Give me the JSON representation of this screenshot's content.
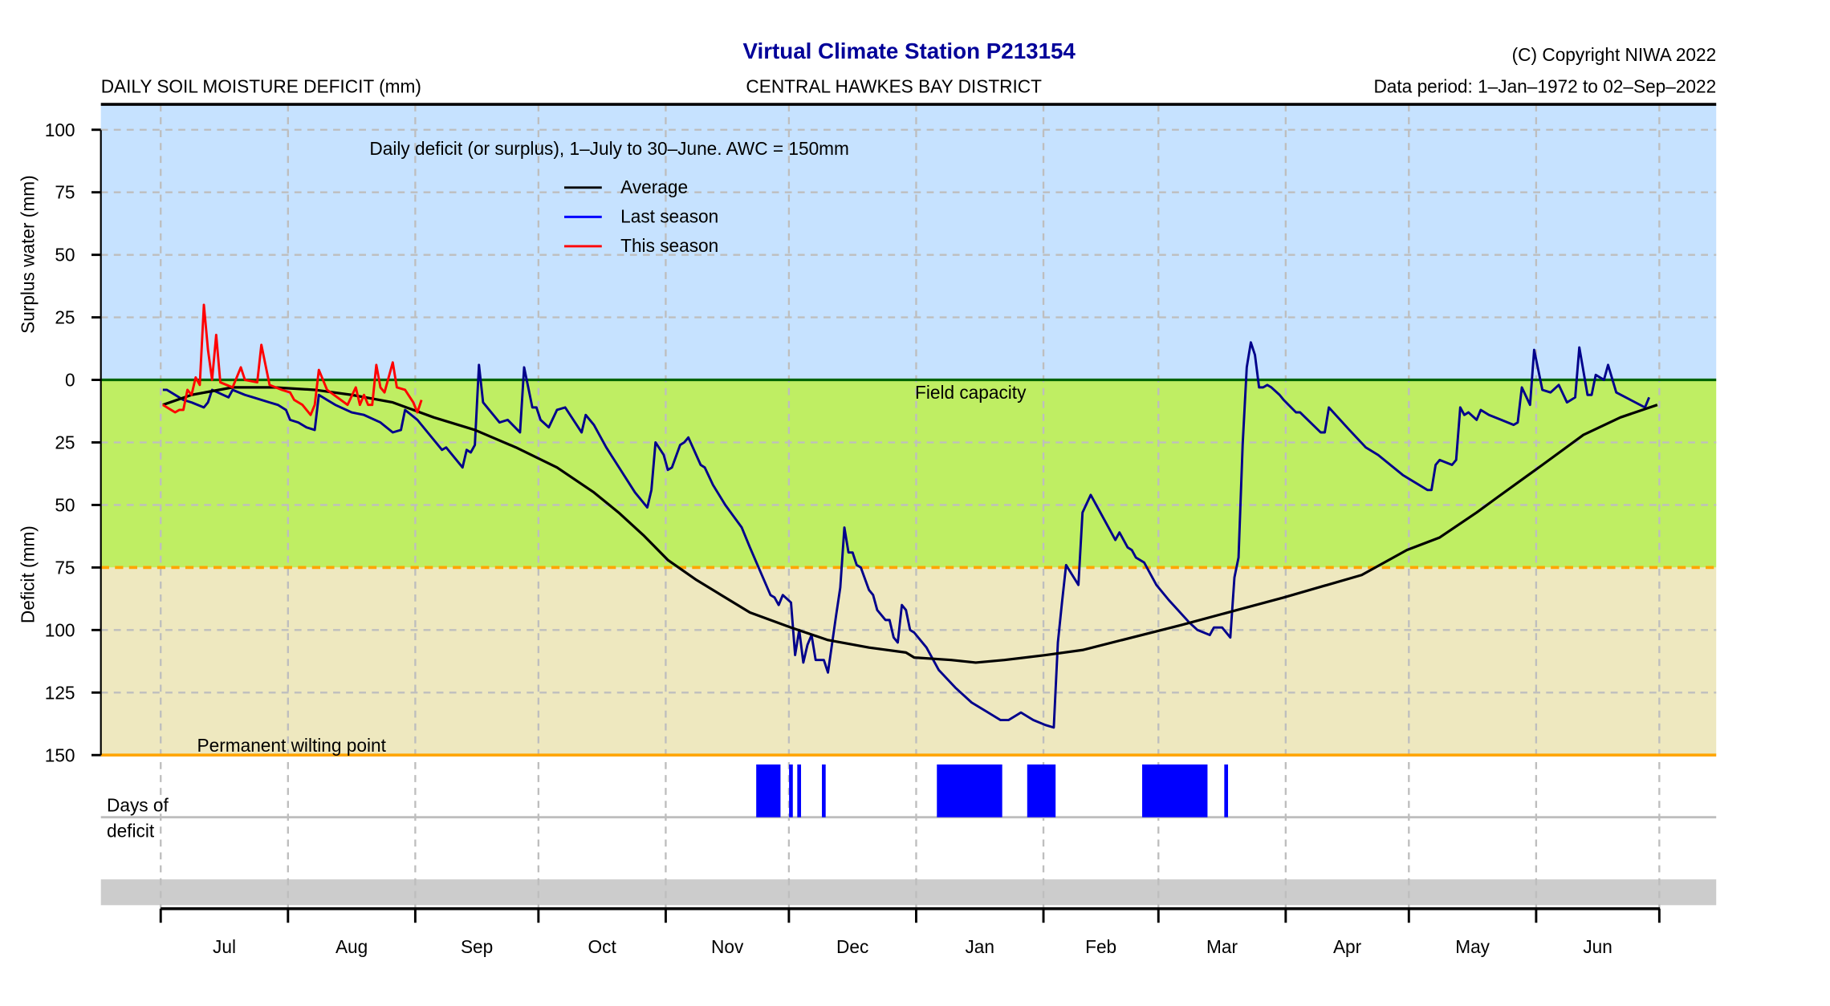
{
  "header": {
    "title": "Virtual Climate Station P213154",
    "copyright": "(C) Copyright NIWA  2022",
    "left_label": "DAILY SOIL MOISTURE DEFICIT (mm)",
    "district": "CENTRAL HAWKES BAY DISTRICT",
    "data_period": "Data period:  1–Jan–1972  to  02–Sep–2022"
  },
  "chart_data": {
    "type": "line",
    "subtitle": "Daily deficit (or surplus), 1–July to 30–June.  AWC = 150mm",
    "ylabel_upper": "Surplus water (mm)",
    "ylabel_lower": "Deficit (mm)",
    "ylim": [
      -150,
      110
    ],
    "y_ticks": [
      100,
      75,
      50,
      25,
      0,
      -25,
      -50,
      -75,
      -100,
      -125,
      -150
    ],
    "y_tick_labels": [
      "100",
      "75",
      "50",
      "25",
      "0",
      "25",
      "50",
      "75",
      "100",
      "125",
      "150"
    ],
    "x_month_labels": [
      "Jul",
      "Aug",
      "Sep",
      "Oct",
      "Nov",
      "Dec",
      "Jan",
      "Feb",
      "Mar",
      "Apr",
      "May",
      "Jun"
    ],
    "grid": true,
    "legend_position": "top-center",
    "annotations": {
      "field_capacity": "Field capacity",
      "wilting_point": "Permanent wilting point",
      "days_of_deficit_line1": "Days of",
      "days_of_deficit_line2": "deficit"
    },
    "zones": [
      {
        "name": "surplus",
        "from": 0,
        "to": 110,
        "color": "#c6e2ff"
      },
      {
        "name": "field",
        "from": -75,
        "to": 0,
        "color": "#bfee63"
      },
      {
        "name": "dry",
        "from": -150,
        "to": -75,
        "color": "#eee8bf"
      }
    ],
    "reference_lines": [
      {
        "value": 0,
        "color": "#006400"
      },
      {
        "value": -75,
        "color": "#ffa500",
        "style": "dashed"
      },
      {
        "value": -150,
        "color": "#ffa500"
      }
    ],
    "series": [
      {
        "name": "Average",
        "color": "#000000",
        "points": [
          [
            "07-01",
            -10
          ],
          [
            "07-08",
            -6
          ],
          [
            "07-18",
            -3
          ],
          [
            "07-28",
            -3
          ],
          [
            "08-07",
            -4
          ],
          [
            "08-16",
            -6
          ],
          [
            "08-26",
            -9
          ],
          [
            "09-05",
            -15
          ],
          [
            "09-15",
            -20
          ],
          [
            "09-25",
            -27
          ],
          [
            "10-05",
            -35
          ],
          [
            "10-14",
            -45
          ],
          [
            "10-20",
            -53
          ],
          [
            "10-26",
            -62
          ],
          [
            "11-01",
            -72
          ],
          [
            "11-08",
            -80
          ],
          [
            "11-14",
            -86
          ],
          [
            "11-21",
            -93
          ],
          [
            "12-01",
            -99
          ],
          [
            "12-10",
            -104
          ],
          [
            "12-20",
            -107
          ],
          [
            "12-29",
            -109
          ],
          [
            "12-31",
            -111
          ],
          [
            "01-09",
            -112
          ],
          [
            "01-15",
            -113
          ],
          [
            "01-22",
            -112
          ],
          [
            "02-01",
            -110
          ],
          [
            "02-10",
            -108
          ],
          [
            "03-06",
            -98
          ],
          [
            "03-31",
            -87
          ],
          [
            "04-19",
            -78
          ],
          [
            "04-30",
            -68
          ],
          [
            "05-08",
            -63
          ],
          [
            "05-17",
            -53
          ],
          [
            "05-22",
            -47
          ],
          [
            "06-02",
            -34
          ],
          [
            "06-12",
            -22
          ],
          [
            "06-21",
            -15
          ],
          [
            "06-30",
            -10
          ]
        ]
      },
      {
        "name": "Last season",
        "color": "#00008b",
        "legend_color": "#0000ff",
        "points": [
          [
            "07-01",
            -4
          ],
          [
            "07-02",
            -4
          ],
          [
            "07-04",
            -6
          ],
          [
            "07-06",
            -8
          ],
          [
            "07-08",
            -9
          ],
          [
            "07-11",
            -11
          ],
          [
            "07-12",
            -9
          ],
          [
            "07-13",
            -4
          ],
          [
            "07-17",
            -7
          ],
          [
            "07-18",
            -4
          ],
          [
            "07-21",
            -6
          ],
          [
            "07-23",
            -7
          ],
          [
            "07-27",
            -9
          ],
          [
            "07-29",
            -10
          ],
          [
            "07-31",
            -12
          ],
          [
            "08-01",
            -16
          ],
          [
            "08-03",
            -17
          ],
          [
            "08-05",
            -19
          ],
          [
            "08-07",
            -20
          ],
          [
            "08-08",
            -6
          ],
          [
            "08-10",
            -8
          ],
          [
            "08-12",
            -10
          ],
          [
            "08-16",
            -13
          ],
          [
            "08-19",
            -14
          ],
          [
            "08-23",
            -17
          ],
          [
            "08-26",
            -21
          ],
          [
            "08-28",
            -20
          ],
          [
            "08-29",
            -12
          ],
          [
            "09-01",
            -16
          ],
          [
            "09-07",
            -28
          ],
          [
            "09-08",
            -27
          ],
          [
            "09-12",
            -35
          ],
          [
            "09-13",
            -28
          ],
          [
            "09-14",
            -29
          ],
          [
            "09-15",
            -26
          ],
          [
            "09-16",
            6
          ],
          [
            "09-17",
            -9
          ],
          [
            "09-21",
            -17
          ],
          [
            "09-23",
            -16
          ],
          [
            "09-26",
            -21
          ],
          [
            "09-27",
            5
          ],
          [
            "09-29",
            -11
          ],
          [
            "09-30",
            -11
          ],
          [
            "10-01",
            -16
          ],
          [
            "10-03",
            -19
          ],
          [
            "10-05",
            -12
          ],
          [
            "10-07",
            -11
          ],
          [
            "10-11",
            -21
          ],
          [
            "10-12",
            -14
          ],
          [
            "10-14",
            -18
          ],
          [
            "10-17",
            -27
          ],
          [
            "10-24",
            -45
          ],
          [
            "10-27",
            -51
          ],
          [
            "10-28",
            -44
          ],
          [
            "10-29",
            -25
          ],
          [
            "10-31",
            -30
          ],
          [
            "11-01",
            -36
          ],
          [
            "11-02",
            -35
          ],
          [
            "11-04",
            -26
          ],
          [
            "11-05",
            -25
          ],
          [
            "11-06",
            -23
          ],
          [
            "11-09",
            -34
          ],
          [
            "11-10",
            -35
          ],
          [
            "11-12",
            -42
          ],
          [
            "11-15",
            -50
          ],
          [
            "11-19",
            -59
          ],
          [
            "11-21",
            -67
          ],
          [
            "11-26",
            -86
          ],
          [
            "11-27",
            -87
          ],
          [
            "11-28",
            -90
          ],
          [
            "11-29",
            -86
          ],
          [
            "12-01",
            -89
          ],
          [
            "12-02",
            -110
          ],
          [
            "12-03",
            -100
          ],
          [
            "12-04",
            -113
          ],
          [
            "12-05",
            -106
          ],
          [
            "12-06",
            -102
          ],
          [
            "12-07",
            -112
          ],
          [
            "12-09",
            -112
          ],
          [
            "12-10",
            -117
          ],
          [
            "12-12",
            -94
          ],
          [
            "12-13",
            -83
          ],
          [
            "12-14",
            -59
          ],
          [
            "12-15",
            -69
          ],
          [
            "12-16",
            -69
          ],
          [
            "12-17",
            -74
          ],
          [
            "12-18",
            -75
          ],
          [
            "12-20",
            -84
          ],
          [
            "12-21",
            -86
          ],
          [
            "12-22",
            -92
          ],
          [
            "12-24",
            -96
          ],
          [
            "12-25",
            -96
          ],
          [
            "12-26",
            -103
          ],
          [
            "12-27",
            -105
          ],
          [
            "12-28",
            -90
          ],
          [
            "12-29",
            -92
          ],
          [
            "12-30",
            -100
          ],
          [
            "12-31",
            -101
          ],
          [
            "01-03",
            -107
          ],
          [
            "01-06",
            -116
          ],
          [
            "01-10",
            -123
          ],
          [
            "01-14",
            -129
          ],
          [
            "01-18",
            -133
          ],
          [
            "01-21",
            -136
          ],
          [
            "01-23",
            -136
          ],
          [
            "01-26",
            -133
          ],
          [
            "01-29",
            -136
          ],
          [
            "02-01",
            -138
          ],
          [
            "02-03",
            -139
          ],
          [
            "02-04",
            -105
          ],
          [
            "02-05",
            -89
          ],
          [
            "02-06",
            -74
          ],
          [
            "02-09",
            -82
          ],
          [
            "02-10",
            -53
          ],
          [
            "02-12",
            -46
          ],
          [
            "02-18",
            -64
          ],
          [
            "02-19",
            -61
          ],
          [
            "02-21",
            -67
          ],
          [
            "02-22",
            -68
          ],
          [
            "02-23",
            -71
          ],
          [
            "02-25",
            -73
          ],
          [
            "02-28",
            -82
          ],
          [
            "03-03",
            -88
          ],
          [
            "03-08",
            -97
          ],
          [
            "03-10",
            -100
          ],
          [
            "03-13",
            -102
          ],
          [
            "03-14",
            -99
          ],
          [
            "03-16",
            -99
          ],
          [
            "03-18",
            -103
          ],
          [
            "03-19",
            -79
          ],
          [
            "03-20",
            -71
          ],
          [
            "03-21",
            -26
          ],
          [
            "03-22",
            5
          ],
          [
            "03-23",
            15
          ],
          [
            "03-24",
            10
          ],
          [
            "03-25",
            -3
          ],
          [
            "03-26",
            -3
          ],
          [
            "03-27",
            -2
          ],
          [
            "03-28",
            -3
          ],
          [
            "03-30",
            -6
          ],
          [
            "03-31",
            -8
          ],
          [
            "04-03",
            -13
          ],
          [
            "04-04",
            -13
          ],
          [
            "04-09",
            -21
          ],
          [
            "04-10",
            -21
          ],
          [
            "04-11",
            -11
          ],
          [
            "04-16",
            -20
          ],
          [
            "04-20",
            -27
          ],
          [
            "04-23",
            -30
          ],
          [
            "04-29",
            -38
          ],
          [
            "05-05",
            -44
          ],
          [
            "05-06",
            -44
          ],
          [
            "05-07",
            -34
          ],
          [
            "05-08",
            -32
          ],
          [
            "05-11",
            -34
          ],
          [
            "05-12",
            -32
          ],
          [
            "05-13",
            -11
          ],
          [
            "05-14",
            -14
          ],
          [
            "05-15",
            -13
          ],
          [
            "05-17",
            -16
          ],
          [
            "05-18",
            -12
          ],
          [
            "05-20",
            -14
          ],
          [
            "05-23",
            -16
          ],
          [
            "05-26",
            -18
          ],
          [
            "05-27",
            -17
          ],
          [
            "05-28",
            -3
          ],
          [
            "05-30",
            -10
          ],
          [
            "05-31",
            12
          ],
          [
            "06-02",
            -4
          ],
          [
            "06-04",
            -5
          ],
          [
            "06-06",
            -2
          ],
          [
            "06-08",
            -9
          ],
          [
            "06-10",
            -7
          ],
          [
            "06-11",
            13
          ],
          [
            "06-13",
            -6
          ],
          [
            "06-14",
            -6
          ],
          [
            "06-15",
            2
          ],
          [
            "06-17",
            0
          ],
          [
            "06-18",
            6
          ],
          [
            "06-20",
            -5
          ],
          [
            "06-27",
            -11
          ],
          [
            "06-28",
            -7
          ]
        ]
      },
      {
        "name": "This season",
        "color": "#ff0000",
        "points": [
          [
            "07-01",
            -10
          ],
          [
            "07-04",
            -13
          ],
          [
            "07-05",
            -12
          ],
          [
            "07-06",
            -12
          ],
          [
            "07-07",
            -4
          ],
          [
            "07-08",
            -6
          ],
          [
            "07-09",
            1
          ],
          [
            "07-10",
            -2
          ],
          [
            "07-11",
            30
          ],
          [
            "07-12",
            12
          ],
          [
            "07-13",
            0
          ],
          [
            "07-14",
            18
          ],
          [
            "07-15",
            -1
          ],
          [
            "07-18",
            -3
          ],
          [
            "07-20",
            5
          ],
          [
            "07-21",
            0
          ],
          [
            "07-24",
            -1
          ],
          [
            "07-25",
            14
          ],
          [
            "07-27",
            -2
          ],
          [
            "07-30",
            -4
          ],
          [
            "08-01",
            -5
          ],
          [
            "08-02",
            -8
          ],
          [
            "08-04",
            -10
          ],
          [
            "08-06",
            -14
          ],
          [
            "08-07",
            -10
          ],
          [
            "08-08",
            4
          ],
          [
            "08-10",
            -4
          ],
          [
            "08-15",
            -10
          ],
          [
            "08-17",
            -3
          ],
          [
            "08-18",
            -10
          ],
          [
            "08-19",
            -6
          ],
          [
            "08-20",
            -10
          ],
          [
            "08-21",
            -10
          ],
          [
            "08-22",
            6
          ],
          [
            "08-23",
            -3
          ],
          [
            "08-24",
            -5
          ],
          [
            "08-26",
            7
          ],
          [
            "08-27",
            -3
          ],
          [
            "08-29",
            -4
          ],
          [
            "08-31",
            -9
          ],
          [
            "09-01",
            -13
          ],
          [
            "09-02",
            -8
          ]
        ]
      }
    ],
    "days_of_deficit": {
      "color": "#0000ff",
      "ranges": [
        [
          "11-23",
          "11-28"
        ],
        [
          "12-01",
          "12-01"
        ],
        [
          "12-03",
          "12-03"
        ],
        [
          "12-09",
          "12-09"
        ],
        [
          "01-06",
          "01-21"
        ],
        [
          "01-28",
          "02-03"
        ],
        [
          "02-25",
          "03-12"
        ],
        [
          "03-17",
          "03-17"
        ]
      ]
    }
  }
}
